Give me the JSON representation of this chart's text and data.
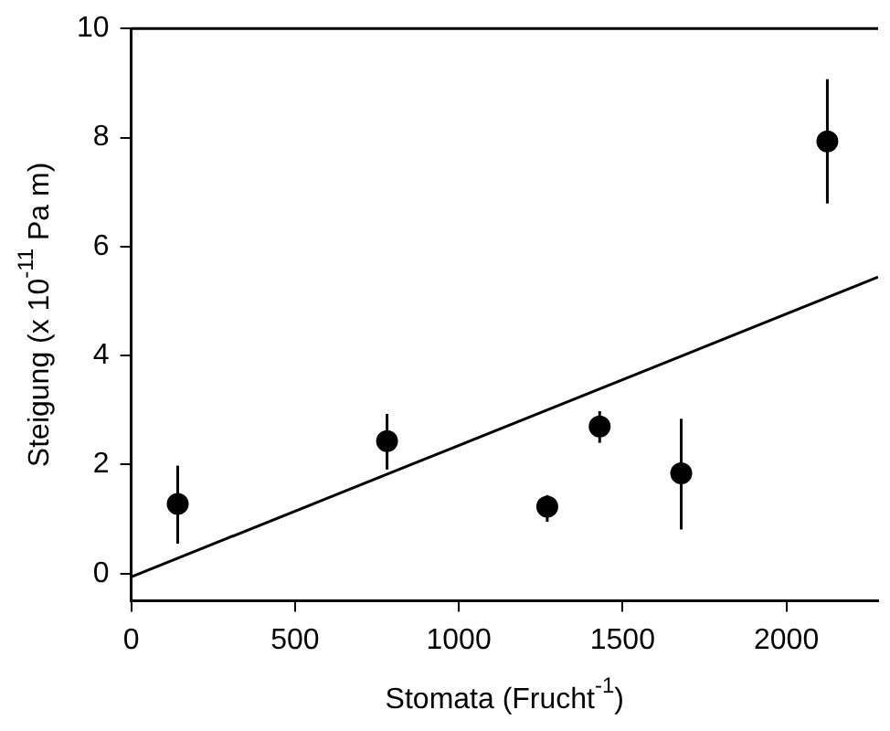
{
  "chart_data": {
    "type": "scatter",
    "xlabel": "Stomata (Frucht$^{-1}$)",
    "ylabel": "Steigung (x 10$^{-11}$ Pa m)",
    "xlim": [
      0,
      2280
    ],
    "xticks": [
      0,
      500,
      1000,
      1500,
      2000
    ],
    "ylim": [
      -0.5,
      10
    ],
    "yticks": [
      0,
      2,
      4,
      6,
      8,
      10
    ],
    "grid": false,
    "legend": false,
    "marker": "circle",
    "series": [
      {
        "type": "scatter",
        "color": "#000000",
        "x": [
          142,
          781,
          1270,
          1430,
          1679,
          2125
        ],
        "values": [
          1.28,
          2.43,
          1.23,
          2.7,
          1.84,
          7.93
        ],
        "errors": [
          [
            0.55,
            1.98
          ],
          [
            1.91,
            2.93
          ],
          [
            0.95,
            1.44
          ],
          [
            2.4,
            2.98
          ],
          [
            0.81,
            2.84
          ],
          [
            6.79,
            9.07
          ]
        ]
      },
      {
        "type": "line",
        "color": "#000000",
        "x": [
          0,
          2280
        ],
        "values": [
          -0.06,
          5.44
        ],
        "line_style": "solid",
        "marker": "none"
      }
    ]
  }
}
